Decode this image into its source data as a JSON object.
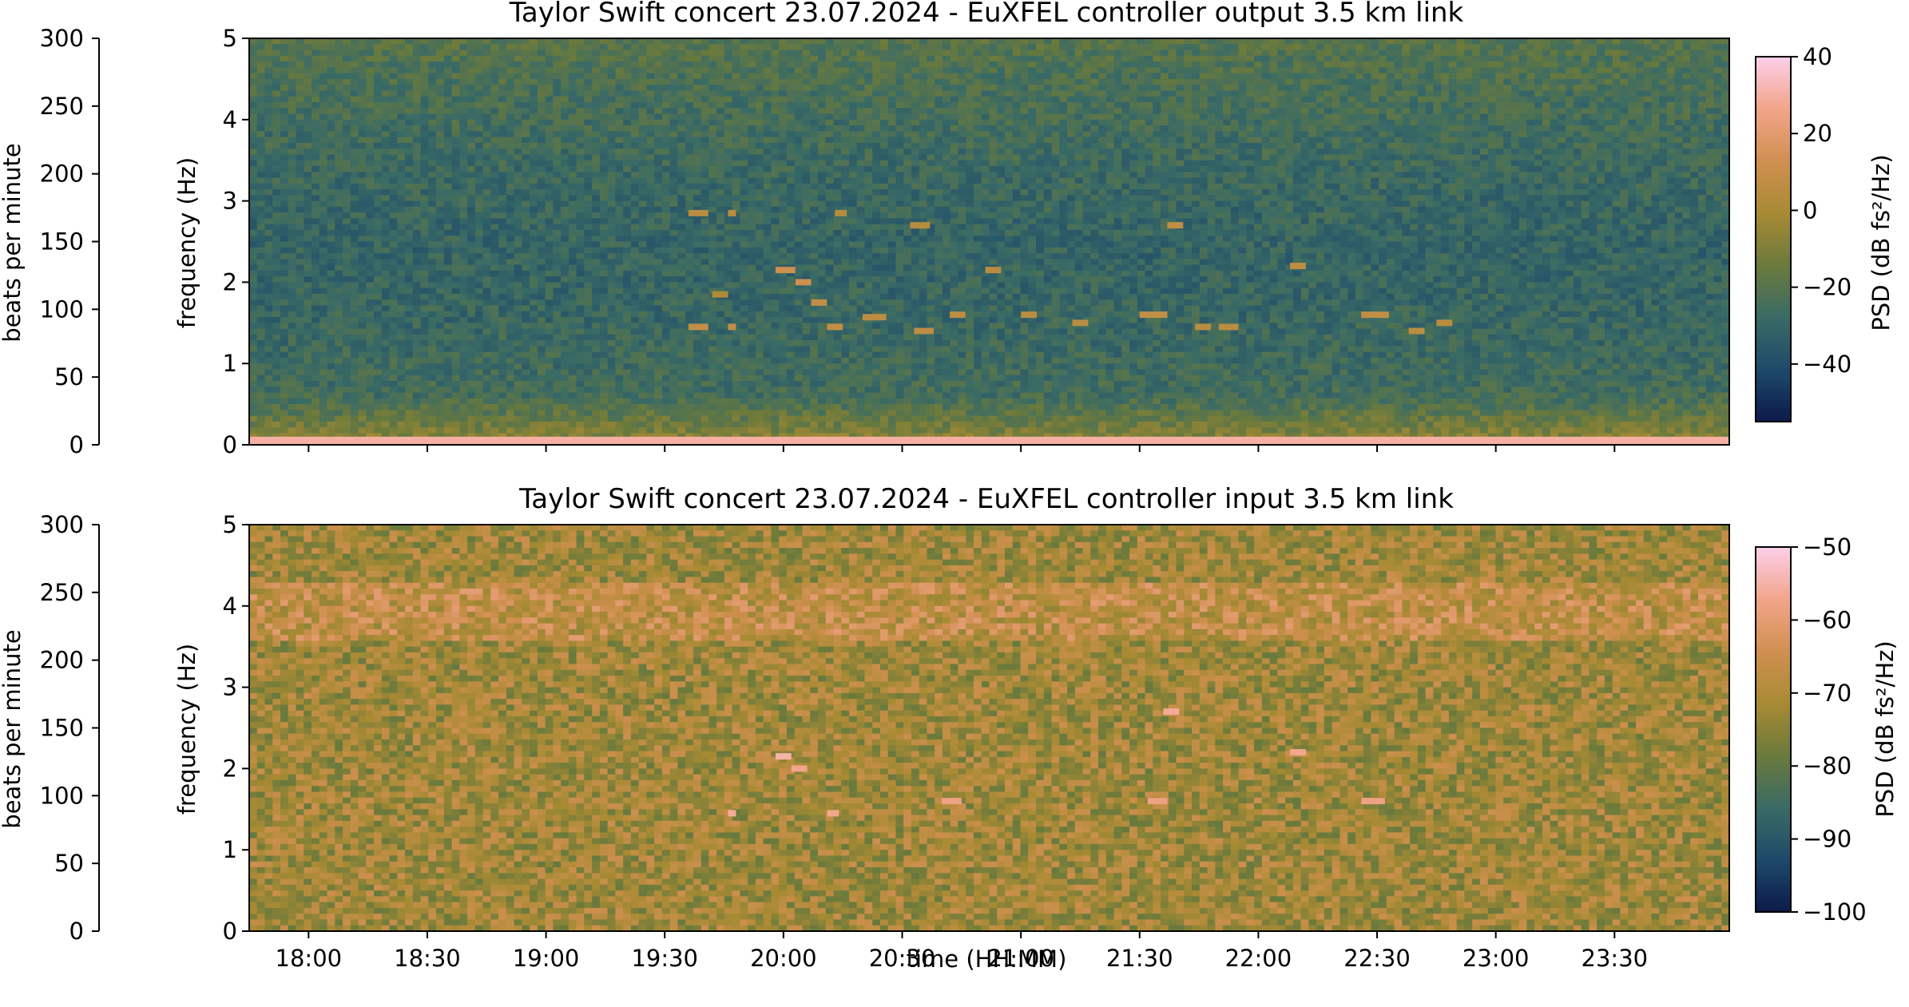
{
  "figure": {
    "xlabel": "time (HH:MM)",
    "x_ticks": [
      "18:00",
      "18:30",
      "19:00",
      "19:30",
      "20:00",
      "20:30",
      "21:00",
      "21:30",
      "22:00",
      "22:30",
      "23:00",
      "23:30"
    ]
  },
  "chart_data": [
    {
      "type": "heatmap",
      "title": "Taylor Swift concert 23.07.2024 - EuXFEL controller output 3.5 km link",
      "xlabel": "",
      "ylabel": "frequency (Hz)",
      "ylim": [
        0,
        5
      ],
      "y_ticks": [
        "0",
        "1",
        "2",
        "3",
        "4",
        "5"
      ],
      "x_range": [
        "17:45",
        "23:59"
      ],
      "secondary_axis": {
        "label": "beats per minute",
        "range": [
          0,
          300
        ],
        "ticks": [
          "0",
          "50",
          "100",
          "150",
          "200",
          "250",
          "300"
        ]
      },
      "colorbar": {
        "label": "PSD (dB fs²/Hz)",
        "range": [
          -55,
          40
        ],
        "ticks": [
          "−40",
          "−20",
          "0",
          "20",
          "40"
        ],
        "tick_values": [
          -40,
          -20,
          0,
          20,
          40
        ]
      },
      "colormap": [
        "#0c1a4a",
        "#1e4a6a",
        "#3a6b65",
        "#6b7a3c",
        "#a88a34",
        "#d09050",
        "#f2a58a",
        "#fccfea"
      ],
      "background_level_db": -25,
      "song_features": [
        {
          "start": "19:36",
          "end": "19:41",
          "freq_hz": 2.85,
          "level_db": 5
        },
        {
          "start": "19:36",
          "end": "19:41",
          "freq_hz": 1.45,
          "level_db": 8
        },
        {
          "start": "19:42",
          "end": "19:46",
          "freq_hz": 1.85,
          "level_db": 2
        },
        {
          "start": "19:46",
          "end": "19:48",
          "freq_hz": 2.85,
          "level_db": 5
        },
        {
          "start": "19:46",
          "end": "19:48",
          "freq_hz": 1.45,
          "level_db": 8
        },
        {
          "start": "19:58",
          "end": "20:03",
          "freq_hz": 2.15,
          "level_db": 12
        },
        {
          "start": "20:03",
          "end": "20:07",
          "freq_hz": 2.0,
          "level_db": 12
        },
        {
          "start": "20:07",
          "end": "20:11",
          "freq_hz": 1.75,
          "level_db": 8
        },
        {
          "start": "20:11",
          "end": "20:15",
          "freq_hz": 1.45,
          "level_db": 8
        },
        {
          "start": "20:13",
          "end": "20:16",
          "freq_hz": 2.85,
          "level_db": 4
        },
        {
          "start": "20:20",
          "end": "20:26",
          "freq_hz": 1.57,
          "level_db": 6
        },
        {
          "start": "20:32",
          "end": "20:37",
          "freq_hz": 2.7,
          "level_db": 4
        },
        {
          "start": "20:33",
          "end": "20:38",
          "freq_hz": 1.4,
          "level_db": 6
        },
        {
          "start": "20:42",
          "end": "20:46",
          "freq_hz": 1.6,
          "level_db": 6
        },
        {
          "start": "20:51",
          "end": "20:55",
          "freq_hz": 2.15,
          "level_db": 5
        },
        {
          "start": "21:00",
          "end": "21:04",
          "freq_hz": 1.6,
          "level_db": 5
        },
        {
          "start": "21:13",
          "end": "21:17",
          "freq_hz": 1.5,
          "level_db": 5
        },
        {
          "start": "21:30",
          "end": "21:37",
          "freq_hz": 1.6,
          "level_db": 8
        },
        {
          "start": "21:37",
          "end": "21:41",
          "freq_hz": 2.7,
          "level_db": 8
        },
        {
          "start": "21:44",
          "end": "21:48",
          "freq_hz": 1.45,
          "level_db": 5
        },
        {
          "start": "21:50",
          "end": "21:55",
          "freq_hz": 1.45,
          "level_db": 5
        },
        {
          "start": "22:08",
          "end": "22:12",
          "freq_hz": 2.2,
          "level_db": 6
        },
        {
          "start": "22:26",
          "end": "22:33",
          "freq_hz": 1.6,
          "level_db": 8
        },
        {
          "start": "22:38",
          "end": "22:42",
          "freq_hz": 1.4,
          "level_db": 5
        },
        {
          "start": "22:45",
          "end": "22:49",
          "freq_hz": 1.5,
          "level_db": 5
        }
      ]
    },
    {
      "type": "heatmap",
      "title": "Taylor Swift concert 23.07.2024 - EuXFEL controller input 3.5 km link",
      "xlabel": "time (HH:MM)",
      "ylabel": "frequency (Hz)",
      "ylim": [
        0,
        5
      ],
      "y_ticks": [
        "0",
        "1",
        "2",
        "3",
        "4",
        "5"
      ],
      "x_range": [
        "17:45",
        "23:59"
      ],
      "secondary_axis": {
        "label": "beats per minute",
        "range": [
          0,
          300
        ],
        "ticks": [
          "0",
          "50",
          "100",
          "150",
          "200",
          "250",
          "300"
        ]
      },
      "colorbar": {
        "label": "PSD (dB fs²/Hz)",
        "range": [
          -100,
          -50
        ],
        "ticks": [
          "−100",
          "−90",
          "−80",
          "−70",
          "−60",
          "−50"
        ],
        "tick_values": [
          -100,
          -90,
          -80,
          -70,
          -60,
          -50
        ]
      },
      "colormap": [
        "#0c1a4a",
        "#1e4a6a",
        "#3a6b65",
        "#6b7a3c",
        "#a88a34",
        "#d09050",
        "#f2a58a",
        "#fccfea"
      ],
      "background_level_db": -71,
      "song_features": [
        {
          "start": "19:58",
          "end": "20:02",
          "freq_hz": 2.15,
          "level_db": -55
        },
        {
          "start": "20:02",
          "end": "20:06",
          "freq_hz": 2.0,
          "level_db": -57
        },
        {
          "start": "19:46",
          "end": "19:48",
          "freq_hz": 1.45,
          "level_db": -56
        },
        {
          "start": "20:11",
          "end": "20:14",
          "freq_hz": 1.45,
          "level_db": -57
        },
        {
          "start": "20:40",
          "end": "20:45",
          "freq_hz": 1.6,
          "level_db": -58
        },
        {
          "start": "21:36",
          "end": "21:40",
          "freq_hz": 2.7,
          "level_db": -56
        },
        {
          "start": "21:32",
          "end": "21:37",
          "freq_hz": 1.6,
          "level_db": -58
        },
        {
          "start": "22:08",
          "end": "22:12",
          "freq_hz": 2.2,
          "level_db": -57
        },
        {
          "start": "22:26",
          "end": "22:32",
          "freq_hz": 1.6,
          "level_db": -58
        }
      ]
    }
  ]
}
